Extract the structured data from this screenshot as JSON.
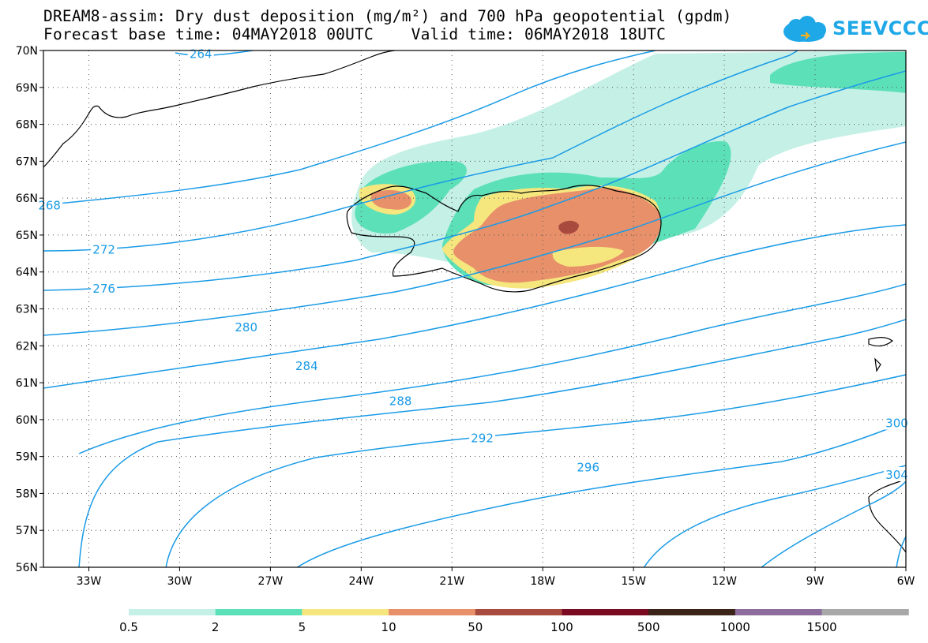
{
  "header": {
    "title_line1": "DREAM8-assim: Dry dust deposition (mg/m²) and 700 hPa geopotential (gpdm)",
    "forecast_base": "Forecast base time: 04MAY2018 00UTC",
    "valid_time": "Valid time: 06MAY2018 18UTC"
  },
  "logo": {
    "text": "SEEVCCC",
    "color": "#1fa8e8"
  },
  "map": {
    "region": {
      "lon_min": -34.5,
      "lon_max": -6,
      "lat_min": 56,
      "lat_max": 70
    },
    "lat_ticks": [
      {
        "value": 70,
        "label": "70N"
      },
      {
        "value": 69,
        "label": "69N"
      },
      {
        "value": 68,
        "label": "68N"
      },
      {
        "value": 67,
        "label": "67N"
      },
      {
        "value": 66,
        "label": "66N"
      },
      {
        "value": 65,
        "label": "65N"
      },
      {
        "value": 64,
        "label": "64N"
      },
      {
        "value": 63,
        "label": "63N"
      },
      {
        "value": 62,
        "label": "62N"
      },
      {
        "value": 61,
        "label": "61N"
      },
      {
        "value": 60,
        "label": "60N"
      },
      {
        "value": 59,
        "label": "59N"
      },
      {
        "value": 58,
        "label": "58N"
      },
      {
        "value": 57,
        "label": "57N"
      },
      {
        "value": 56,
        "label": "56N"
      }
    ],
    "lon_ticks": [
      {
        "value": -33,
        "label": "33W"
      },
      {
        "value": -30,
        "label": "30W"
      },
      {
        "value": -27,
        "label": "27W"
      },
      {
        "value": -24,
        "label": "24W"
      },
      {
        "value": -21,
        "label": "21W"
      },
      {
        "value": -18,
        "label": "18W"
      },
      {
        "value": -15,
        "label": "15W"
      },
      {
        "value": -12,
        "label": "12W"
      },
      {
        "value": -9,
        "label": "9W"
      },
      {
        "value": -6,
        "label": "6W"
      }
    ],
    "geopotential_contours": [
      {
        "label": "264",
        "label_lon": -29.3,
        "label_lat": 69.9
      },
      {
        "label": "268",
        "label_lon": -34.3,
        "label_lat": 65.8
      },
      {
        "label": "272",
        "label_lon": -32.5,
        "label_lat": 64.6
      },
      {
        "label": "276",
        "label_lon": -32.5,
        "label_lat": 63.55
      },
      {
        "label": "280",
        "label_lon": -27.8,
        "label_lat": 62.5
      },
      {
        "label": "284",
        "label_lon": -25.8,
        "label_lat": 61.45
      },
      {
        "label": "288",
        "label_lon": -22.7,
        "label_lat": 60.5
      },
      {
        "label": "292",
        "label_lon": -20.0,
        "label_lat": 59.5
      },
      {
        "label": "296",
        "label_lon": -16.5,
        "label_lat": 58.7
      },
      {
        "label": "300",
        "label_lon": -6.3,
        "label_lat": 59.9
      },
      {
        "label": "304",
        "label_lon": -6.3,
        "label_lat": 58.5
      }
    ],
    "contour_color": "#1a9be6"
  },
  "legend": {
    "colors": [
      "#c5f0e6",
      "#5ce0b8",
      "#f5e67e",
      "#e8906a",
      "#a84a3e",
      "#7a0a22",
      "#3a2418",
      "#8c6c9c",
      "#a8a8a8"
    ],
    "labels": [
      "0.5",
      "2",
      "5",
      "10",
      "50",
      "100",
      "500",
      "1000",
      "1500"
    ]
  }
}
